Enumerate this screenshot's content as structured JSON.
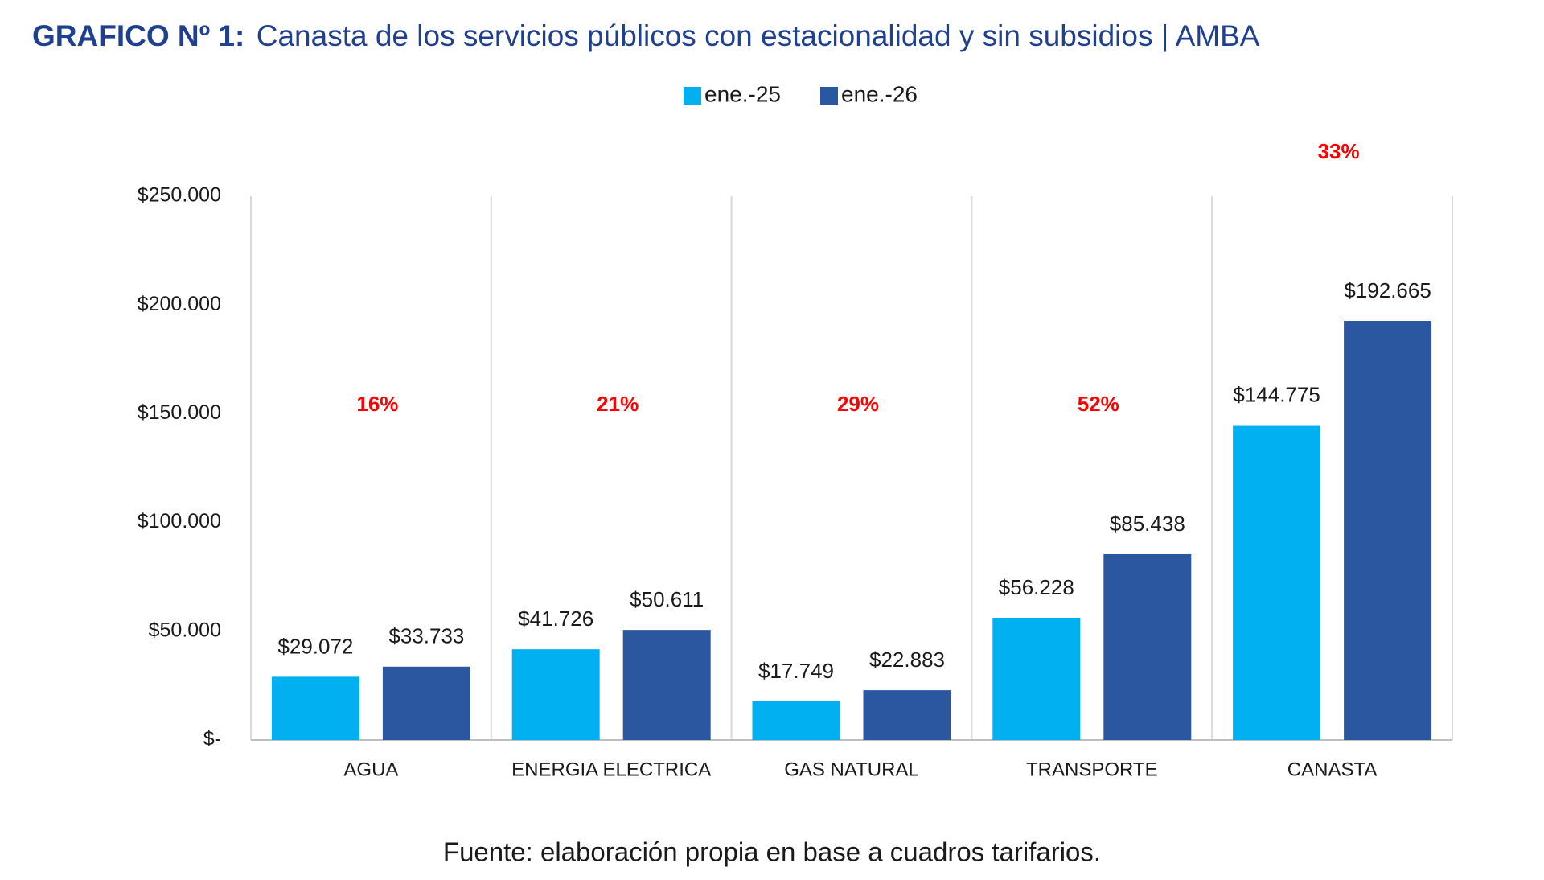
{
  "chart_data": {
    "type": "bar",
    "title_prefix": "GRAFICO Nº 1:",
    "title": "Canasta de los servicios públicos con estacionalidad y sin subsidios | AMBA",
    "categories": [
      "AGUA",
      "ENERGIA ELECTRICA",
      "GAS NATURAL",
      "TRANSPORTE",
      "CANASTA"
    ],
    "series": [
      {
        "name": "ene.-25",
        "color": "#00b0f0",
        "values": [
          29072,
          41726,
          17749,
          56228,
          144775
        ],
        "value_labels": [
          "$29.072",
          "$41.726",
          "$17.749",
          "$56.228",
          "$144.775"
        ]
      },
      {
        "name": "ene.-26",
        "color": "#2a579f",
        "values": [
          33733,
          50611,
          22883,
          85438,
          192665
        ],
        "value_labels": [
          "$33.733",
          "$50.611",
          "$22.883",
          "$85.438",
          "$192.665"
        ]
      }
    ],
    "annotations": [
      "16%",
      "21%",
      "29%",
      "52%",
      "33%"
    ],
    "ylim": [
      0,
      250000
    ],
    "yticks": [
      {
        "value": 0,
        "label": "$-"
      },
      {
        "value": 50000,
        "label": "$50.000"
      },
      {
        "value": 100000,
        "label": "$100.000"
      },
      {
        "value": 150000,
        "label": "$150.000"
      },
      {
        "value": 200000,
        "label": "$200.000"
      },
      {
        "value": 250000,
        "label": "$250.000"
      }
    ],
    "footer": "Fuente: elaboración propia en base a cuadros tarifarios."
  }
}
